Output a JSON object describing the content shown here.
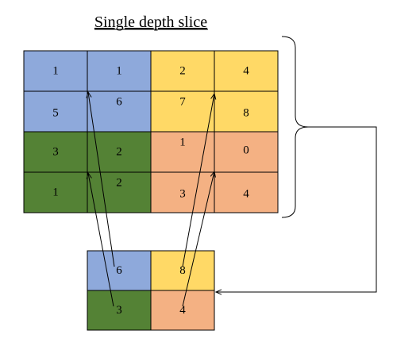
{
  "title": "Single depth slice",
  "colors": {
    "blue": "#8EA9DB",
    "yellow": "#FFD966",
    "green": "#548235",
    "orange": "#F4B183"
  },
  "input_grid": {
    "rows": [
      [
        "1",
        "1",
        "2",
        "4"
      ],
      [
        "5",
        "6",
        "7",
        "8"
      ],
      [
        "3",
        "2",
        "1",
        "0"
      ],
      [
        "1",
        "2",
        "3",
        "4"
      ]
    ],
    "quadrant_colors": [
      [
        "blue",
        "blue",
        "yellow",
        "yellow"
      ],
      [
        "blue",
        "blue",
        "yellow",
        "yellow"
      ],
      [
        "green",
        "green",
        "orange",
        "orange"
      ],
      [
        "green",
        "green",
        "orange",
        "orange"
      ]
    ]
  },
  "output_grid": {
    "rows": [
      [
        "6",
        "8"
      ],
      [
        "3",
        "4"
      ]
    ],
    "quadrant_colors": [
      [
        "blue",
        "yellow"
      ],
      [
        "green",
        "orange"
      ]
    ]
  }
}
